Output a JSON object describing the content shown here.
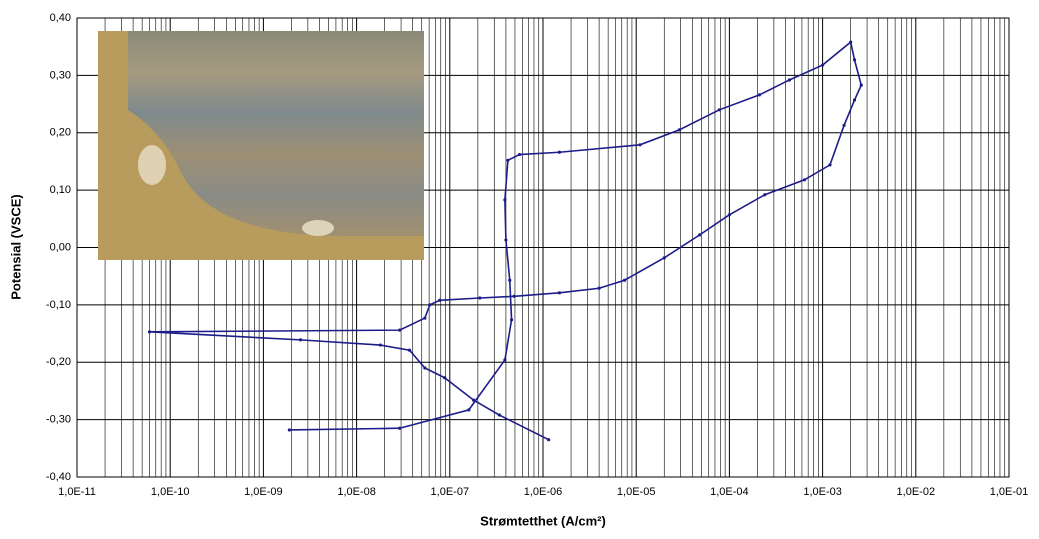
{
  "chart_data": {
    "type": "line",
    "x_label": "Strømtetthet (A/cm²)",
    "y_label": "Potensial (VSCE)",
    "x_log": true,
    "grid": true,
    "xlim": [
      1e-11,
      0.1
    ],
    "ylim": [
      -0.4,
      0.4
    ],
    "xticks": [
      {
        "value": 1e-11,
        "label": "1,0E-11"
      },
      {
        "value": 1e-10,
        "label": "1,0E-10"
      },
      {
        "value": 1e-09,
        "label": "1,0E-09"
      },
      {
        "value": 1e-08,
        "label": "1,0E-08"
      },
      {
        "value": 1e-07,
        "label": "1,0E-07"
      },
      {
        "value": 1e-06,
        "label": "1,0E-06"
      },
      {
        "value": 1e-05,
        "label": "1,0E-05"
      },
      {
        "value": 0.0001,
        "label": "1,0E-04"
      },
      {
        "value": 0.001,
        "label": "1,0E-03"
      },
      {
        "value": 0.01,
        "label": "1,0E-02"
      },
      {
        "value": 0.1,
        "label": "1,0E-01"
      }
    ],
    "yticks": [
      {
        "value": -0.4,
        "label": "-0,40"
      },
      {
        "value": -0.3,
        "label": "-0,30"
      },
      {
        "value": -0.2,
        "label": "-0,20"
      },
      {
        "value": -0.1,
        "label": "-0,10"
      },
      {
        "value": 0,
        "label": "0,00"
      },
      {
        "value": 0.1,
        "label": "0,10"
      },
      {
        "value": 0.2,
        "label": "0,20"
      },
      {
        "value": 0.3,
        "label": "0,30"
      },
      {
        "value": 0.4,
        "label": "0,40"
      }
    ],
    "series": [
      {
        "color": "#1c1c8a",
        "x": [
          1.15e-06,
          3.4e-07,
          1.8e-07,
          8.8e-08,
          5.4e-08,
          3.7e-08,
          1.8e-08,
          2.5e-09,
          6e-11,
          2.9e-08,
          5.4e-08,
          6.1e-08,
          7.8e-08,
          2.1e-07,
          4.9e-07,
          1.5e-06,
          4e-06,
          7.5e-06,
          2e-05,
          4.8e-05,
          0.0001,
          0.00024,
          0.00064,
          0.0012,
          0.0017,
          0.0022,
          0.0026,
          0.0022,
          0.002,
          0.001,
          0.00044,
          0.00021,
          7.8e-05,
          2.9e-05,
          1.1e-05,
          1.5e-06,
          5.6e-07,
          4.2e-07,
          3.9e-07,
          4e-07,
          4.4e-07,
          4.6e-07,
          3.9e-07,
          1.6e-07,
          2.9e-08,
          1.9e-09
        ],
        "values": [
          -0.335,
          -0.292,
          -0.266,
          -0.227,
          -0.21,
          -0.179,
          -0.17,
          -0.161,
          -0.147,
          -0.144,
          -0.123,
          -0.1,
          -0.092,
          -0.088,
          -0.085,
          -0.079,
          -0.071,
          -0.057,
          -0.018,
          0.022,
          0.057,
          0.092,
          0.118,
          0.144,
          0.213,
          0.257,
          0.283,
          0.327,
          0.358,
          0.318,
          0.292,
          0.266,
          0.24,
          0.205,
          0.179,
          0.166,
          0.162,
          0.152,
          0.083,
          0.013,
          -0.057,
          -0.126,
          -0.196,
          -0.283,
          -0.315,
          -0.318
        ]
      }
    ]
  }
}
